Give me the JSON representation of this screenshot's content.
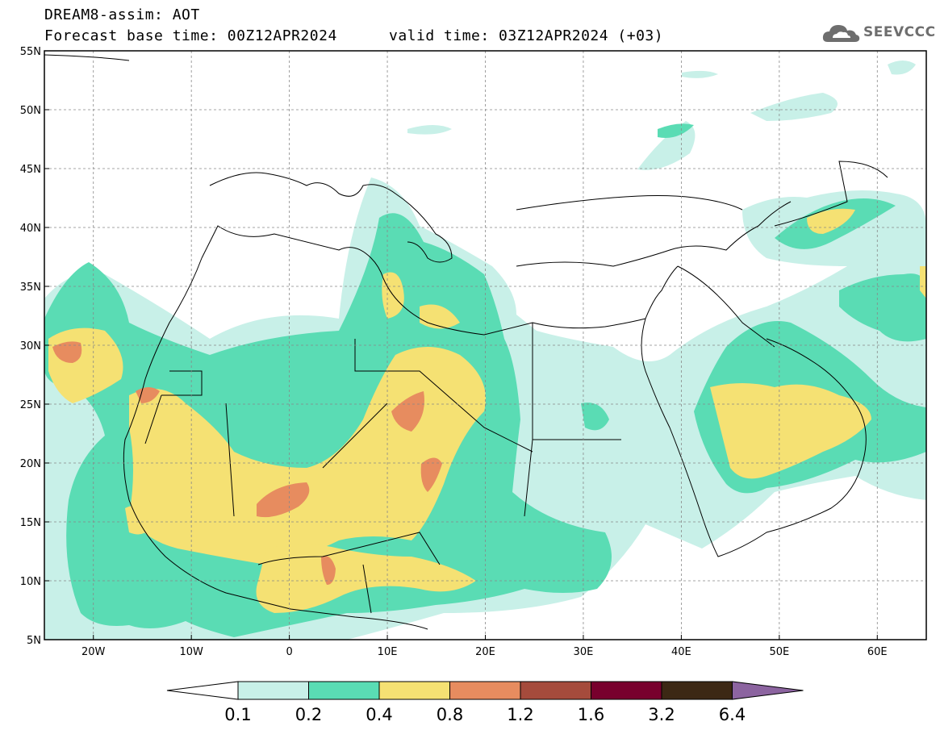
{
  "header": {
    "title": "DREAM8-assim: AOT",
    "base_time": "Forecast base time: 00Z12APR2024",
    "valid_time": "valid time: 03Z12APR2024 (+03)",
    "logo": "SEEVCCC",
    "logo_icon": "cloud-icon"
  },
  "axes": {
    "lat_labels": [
      "55N",
      "50N",
      "45N",
      "40N",
      "35N",
      "30N",
      "25N",
      "20N",
      "15N",
      "10N",
      "5N"
    ],
    "lon_labels": [
      "20W",
      "10W",
      "0",
      "10E",
      "20E",
      "30E",
      "40E",
      "50E",
      "60E"
    ],
    "lat_range": [
      5,
      55
    ],
    "lon_range": [
      -25,
      65
    ],
    "gridlines": true
  },
  "colorbar": {
    "labels": [
      "0.1",
      "0.2",
      "0.4",
      "0.8",
      "1.2",
      "1.6",
      "3.2",
      "6.4"
    ],
    "colors": [
      "#ffffff",
      "#c8f0e8",
      "#5adcb4",
      "#f5e173",
      "#e78c5f",
      "#a54b3c",
      "#78002d",
      "#3c2814",
      "#8c64a0"
    ]
  }
}
